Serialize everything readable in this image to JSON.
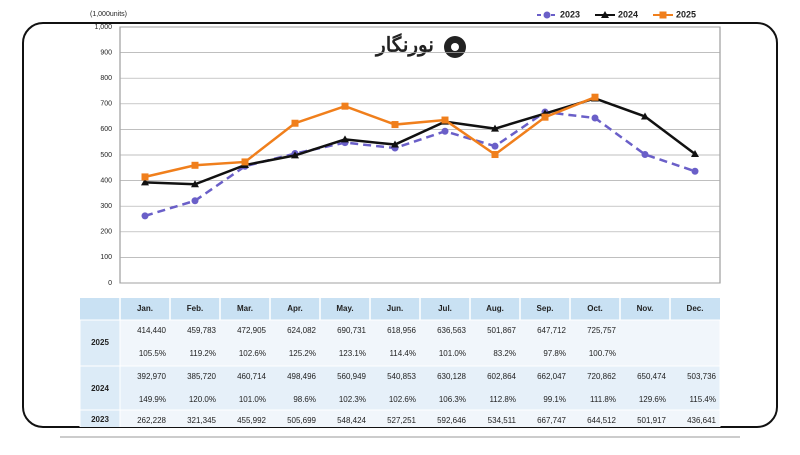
{
  "chart_data": {
    "type": "line",
    "y_axis_label": "(1,000units)",
    "watermark": "نورنگار",
    "categories": [
      "Jan.",
      "Feb.",
      "Mar.",
      "Apr.",
      "May.",
      "Jun.",
      "Jul.",
      "Aug.",
      "Sep.",
      "Oct.",
      "Nov.",
      "Dec."
    ],
    "ylim": [
      0,
      1000
    ],
    "yticks": [
      0,
      100,
      200,
      300,
      400,
      500,
      600,
      700,
      800,
      900,
      {
        "value": 1000,
        "label": "1,000"
      }
    ],
    "grid": true,
    "legend": "top-right",
    "series": [
      {
        "name": "2023",
        "color": "#6a5fc8",
        "dashed": true,
        "marker": "circle",
        "values": [
          262.228,
          321.345,
          455.992,
          505.699,
          548.424,
          527.251,
          592.646,
          534.511,
          667.747,
          644.512,
          501.917,
          436.641
        ],
        "value_labels": [
          "262,228",
          "321,345",
          "455,992",
          "505,699",
          "548,424",
          "527,251",
          "592,646",
          "534,511",
          "667,747",
          "644,512",
          "501,917",
          "436,641"
        ]
      },
      {
        "name": "2024",
        "color": "#111111",
        "dashed": false,
        "marker": "triangle",
        "values": [
          392.97,
          385.72,
          460.714,
          498.496,
          560.949,
          540.853,
          630.128,
          602.864,
          662.047,
          720.862,
          650.474,
          503.736
        ],
        "value_labels": [
          "392,970",
          "385,720",
          "460,714",
          "498,496",
          "560,949",
          "540,853",
          "630,128",
          "602,864",
          "662,047",
          "720,862",
          "650,474",
          "503,736"
        ],
        "yoy": [
          149.9,
          120.0,
          101.0,
          98.6,
          102.3,
          102.6,
          106.3,
          112.8,
          99.1,
          111.8,
          129.6,
          115.4
        ],
        "yoy_labels": [
          "149.9%",
          "120.0%",
          "101.0%",
          "98.6%",
          "102.3%",
          "102.6%",
          "106.3%",
          "112.8%",
          "99.1%",
          "111.8%",
          "129.6%",
          "115.4%"
        ]
      },
      {
        "name": "2025",
        "color": "#f07f1c",
        "dashed": false,
        "marker": "square",
        "values": [
          414.44,
          459.783,
          472.905,
          624.082,
          690.731,
          618.956,
          636.563,
          501.867,
          647.712,
          725.757,
          null,
          null
        ],
        "value_labels": [
          "414,440",
          "459,783",
          "472,905",
          "624,082",
          "690,731",
          "618,956",
          "636,563",
          "501,867",
          "647,712",
          "725,757",
          null,
          null
        ],
        "yoy": [
          105.5,
          119.2,
          102.6,
          125.2,
          123.1,
          114.4,
          101.0,
          83.2,
          97.8,
          100.7,
          null,
          null
        ],
        "yoy_labels": [
          "105.5%",
          "119.2%",
          "102.6%",
          "125.2%",
          "123.1%",
          "114.4%",
          "101.0%",
          "83.2%",
          "97.8%",
          "100.7%",
          null,
          null
        ]
      }
    ]
  }
}
